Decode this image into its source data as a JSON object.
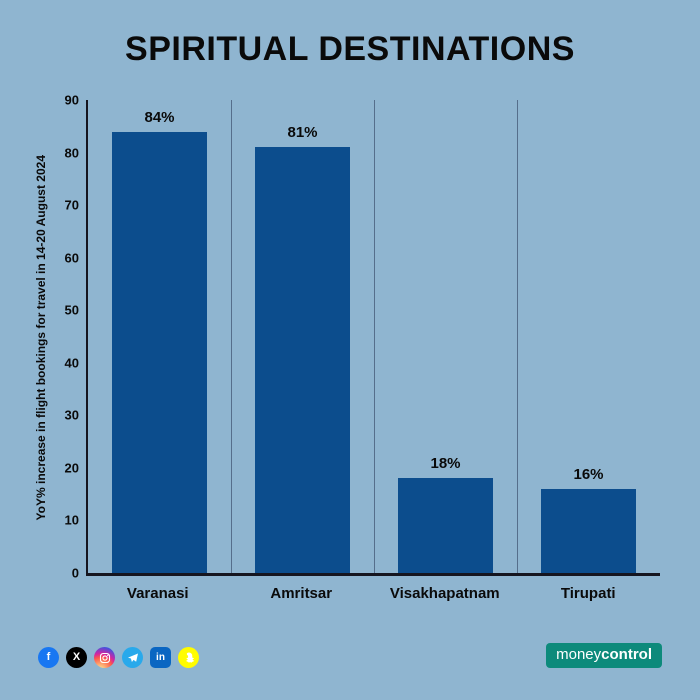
{
  "title": "SPIRITUAL DESTINATIONS",
  "chart_data": {
    "type": "bar",
    "title": "SPIRITUAL DESTINATIONS",
    "categories": [
      "Varanasi",
      "Amritsar",
      "Visakhapatnam",
      "Tirupati"
    ],
    "values": [
      84,
      81,
      18,
      16
    ],
    "value_labels": [
      "84%",
      "81%",
      "18%",
      "16%"
    ],
    "ylabel": "YoY% increase in flight bookings for travel in 14-20 August 2024",
    "xlabel": "",
    "ylim": [
      0,
      90
    ],
    "yticks": [
      0,
      10,
      20,
      30,
      40,
      50,
      60,
      70,
      80,
      90
    ],
    "grid": "vertical category separator lines only, no horizontal gridlines",
    "legend": "none",
    "bar_color": "#0c4d8d"
  },
  "colors": {
    "background": "#8fb5d0",
    "bar": "#0c4d8d",
    "axis": "#15151f",
    "text": "#0a0a0a",
    "separator": "rgba(15,25,55,0.45)"
  },
  "footer": {
    "social_icons": [
      {
        "name": "facebook-icon",
        "bg": "#1877f2",
        "glyph": "f",
        "shape": "circle"
      },
      {
        "name": "x-icon",
        "bg": "#000000",
        "glyph": "X",
        "shape": "circle"
      },
      {
        "name": "instagram-icon",
        "bg": "gradient",
        "glyph": "camera",
        "shape": "circle"
      },
      {
        "name": "telegram-icon",
        "bg": "#29a9eb",
        "glyph": "plane",
        "shape": "circle"
      },
      {
        "name": "linkedin-icon",
        "bg": "#0a66c2",
        "glyph": "in",
        "shape": "rounded-square"
      },
      {
        "name": "snapchat-icon",
        "bg": "#fffc00",
        "glyph": "ghost",
        "shape": "circle"
      }
    ],
    "brand": {
      "part1": "money",
      "part2": "control",
      "bg": "#0d8a7b"
    }
  }
}
